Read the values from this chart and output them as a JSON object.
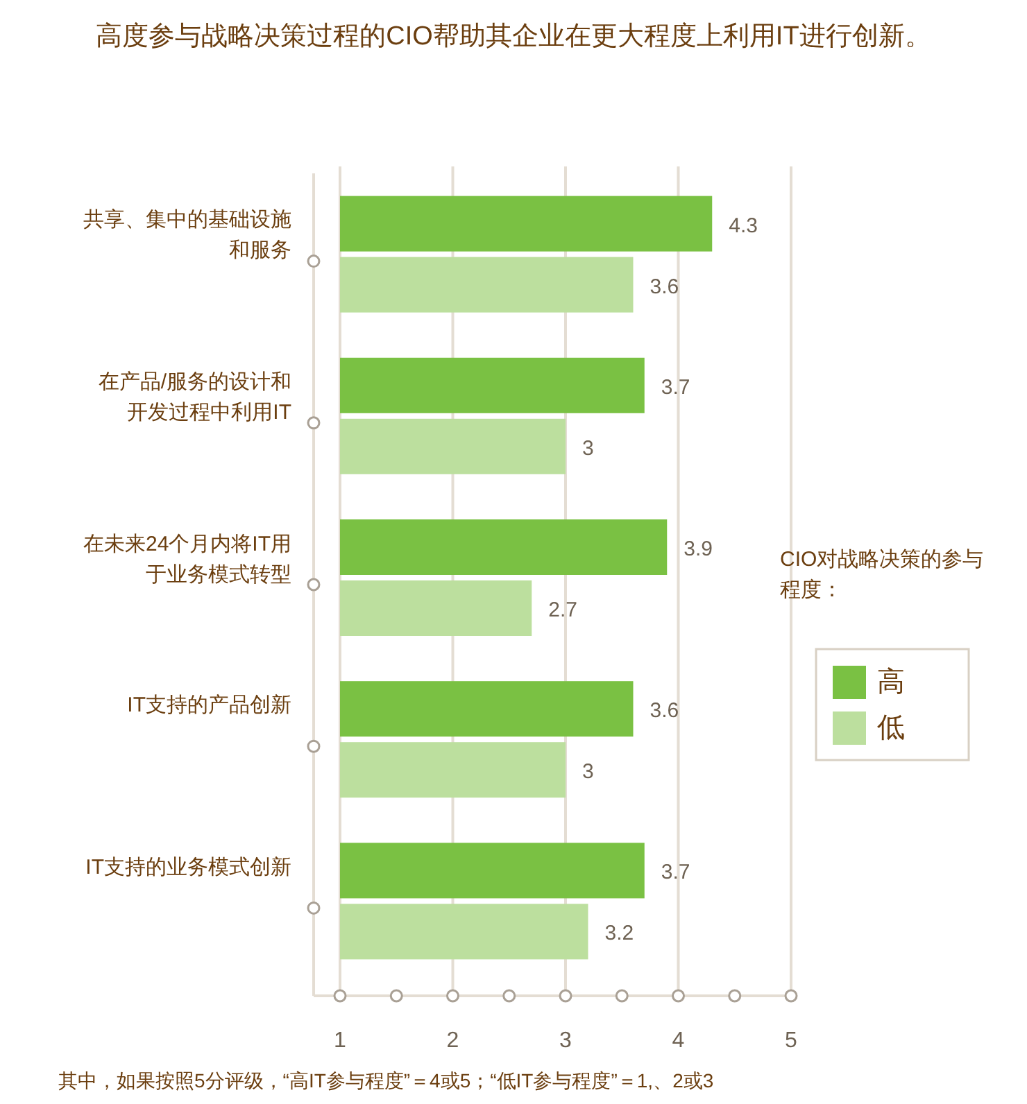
{
  "chart_data": {
    "type": "bar",
    "orientation": "horizontal",
    "title": "高度参与战略决策过程的CIO帮助其企业在更大程度上利用IT进行创新。",
    "categories": [
      "共享、集中的基础设施和服务",
      "在产品/服务的设计和开发过程中利用IT",
      "在未来24个月内将IT用于业务模式转型",
      "IT支持的产品创新",
      "IT支持的业务模式创新"
    ],
    "series": [
      {
        "name": "高",
        "color": "#7ac143",
        "values": [
          4.3,
          3.7,
          3.9,
          3.6,
          3.7
        ]
      },
      {
        "name": "低",
        "color": "#bcdf9e",
        "values": [
          3.6,
          3,
          2.7,
          3,
          3.2
        ]
      }
    ],
    "xlim": [
      1,
      5
    ],
    "xticks": [
      1,
      2,
      3,
      4,
      5
    ],
    "grid": "x",
    "legend": "right",
    "legend_title": "CIO对战略决策的参与程度：",
    "data_labels": true,
    "annotations": [
      "其中，如果按照5分评级，“高IT参与程度”＝4或5；“低IT参与程度”＝1,、2或3"
    ]
  }
}
